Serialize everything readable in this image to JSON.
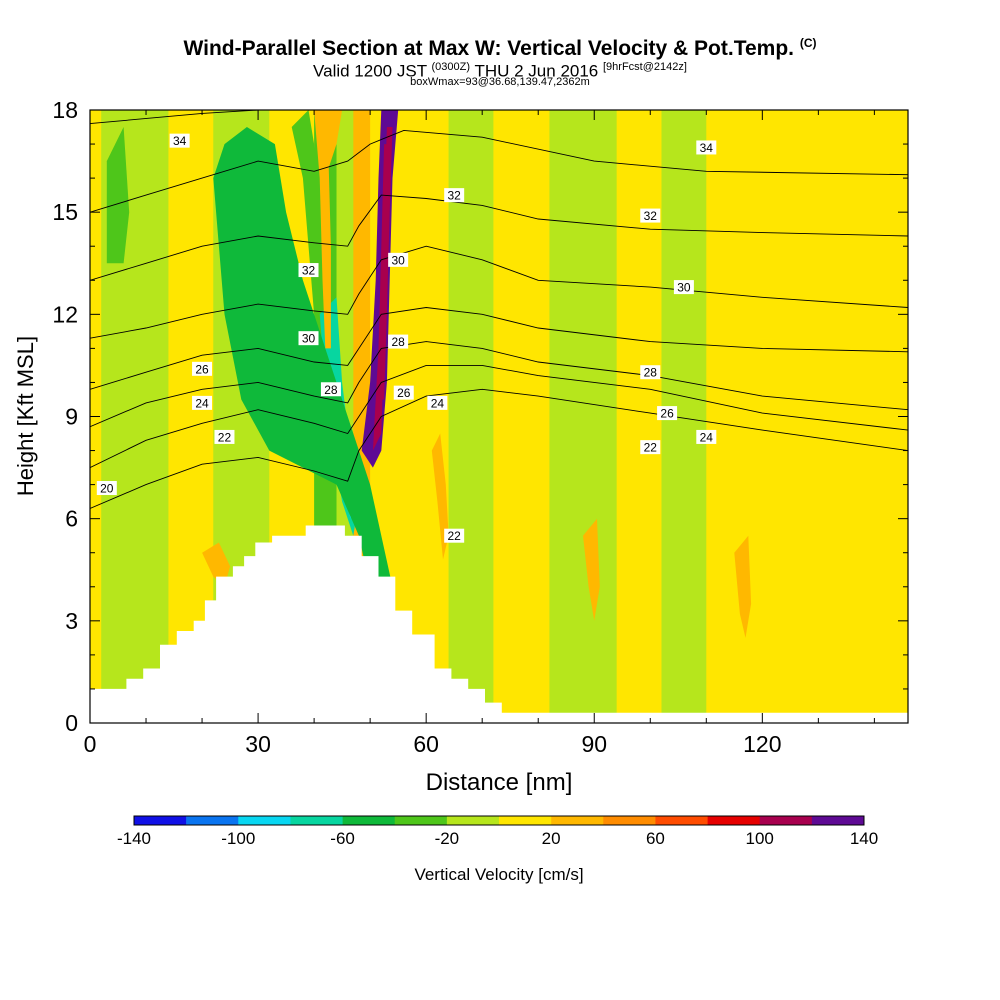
{
  "header": {
    "title": "Wind-Parallel Section at Max W: Vertical Velocity & Pot.Temp.",
    "title_tag": "(C)",
    "subtitle_valid": "Valid 1200 JST",
    "subtitle_z": "(0300Z)",
    "subtitle_date": "THU 2 Jun 2016",
    "subtitle_fcst": "[9hrFcst@2142z]",
    "subtitle2": "boxWmax=93@36.68,139.47,2362m"
  },
  "chart_data": {
    "type": "heatmap",
    "title": "Wind-Parallel Section at Max W: Vertical Velocity & Pot.Temp.",
    "xlabel": "Distance [nm]",
    "ylabel": "Height [Kft MSL]",
    "xlim": [
      0,
      146
    ],
    "ylim": [
      0,
      18
    ],
    "xticks": [
      0,
      30,
      60,
      90,
      120
    ],
    "yticks": [
      0,
      3,
      6,
      9,
      12,
      15,
      18
    ],
    "colorbar": {
      "label": "Vertical Velocity [cm/s]",
      "ticks": [
        -140,
        -100,
        -60,
        -20,
        20,
        60,
        100,
        140
      ],
      "colors": [
        "#1010e6",
        "#0a74f0",
        "#08d7f2",
        "#07d6a0",
        "#0fb93a",
        "#4ec61a",
        "#b6e61c",
        "#ffe600",
        "#ffb800",
        "#ff8c00",
        "#ff4c00",
        "#e60000",
        "#a8004e",
        "#5e0a94"
      ],
      "bounds": [
        -140,
        -120,
        -100,
        -80,
        -60,
        -40,
        -20,
        0,
        20,
        40,
        60,
        80,
        100,
        120,
        140
      ]
    },
    "background_bands": [
      {
        "x0": 0,
        "x1": 2,
        "w": 2
      },
      {
        "x0": 2,
        "x1": 14,
        "w": -8
      },
      {
        "x0": 14,
        "x1": 22,
        "w": 5
      },
      {
        "x0": 22,
        "x1": 32,
        "w": -12
      },
      {
        "x0": 32,
        "x1": 40,
        "w": 18
      },
      {
        "x0": 40,
        "x1": 44,
        "w": -25
      },
      {
        "x0": 44,
        "x1": 47,
        "w": -12
      },
      {
        "x0": 47,
        "x1": 50,
        "w": 30
      },
      {
        "x0": 50,
        "x1": 56,
        "w": 15
      },
      {
        "x0": 56,
        "x1": 64,
        "w": 12
      },
      {
        "x0": 64,
        "x1": 72,
        "w": -8
      },
      {
        "x0": 72,
        "x1": 82,
        "w": 10
      },
      {
        "x0": 82,
        "x1": 94,
        "w": -10
      },
      {
        "x0": 94,
        "x1": 102,
        "w": 10
      },
      {
        "x0": 102,
        "x1": 110,
        "w": -10
      },
      {
        "x0": 110,
        "x1": 120,
        "w": 8
      },
      {
        "x0": 120,
        "x1": 146,
        "w": 6
      }
    ],
    "features": [
      {
        "type": "polygon",
        "w": 130,
        "pts": [
          [
            48.5,
            8
          ],
          [
            50,
            10
          ],
          [
            51,
            13
          ],
          [
            51.5,
            16
          ],
          [
            52,
            18
          ],
          [
            55,
            18
          ],
          [
            54,
            16
          ],
          [
            53.5,
            13
          ],
          [
            53,
            10
          ],
          [
            52,
            8
          ],
          [
            50.5,
            7.5
          ]
        ]
      },
      {
        "type": "polygon",
        "w": 105,
        "pts": [
          [
            50.5,
            8
          ],
          [
            51.5,
            11
          ],
          [
            52,
            14
          ],
          [
            52.5,
            17
          ],
          [
            53.5,
            17
          ],
          [
            53,
            14
          ],
          [
            52.5,
            11
          ],
          [
            52,
            8.5
          ]
        ]
      },
      {
        "type": "polygon",
        "w": 110,
        "pts": [
          [
            51.5,
            9.5
          ],
          [
            52,
            12
          ],
          [
            52.5,
            15
          ],
          [
            53,
            17.5
          ],
          [
            54,
            17.5
          ],
          [
            53.5,
            15
          ],
          [
            53,
            12
          ],
          [
            52.5,
            9.5
          ]
        ]
      },
      {
        "type": "polygon",
        "w": -70,
        "pts": [
          [
            41,
            12
          ],
          [
            42,
            10
          ],
          [
            43,
            8.5
          ],
          [
            45,
            6.5
          ],
          [
            47,
            5.5
          ],
          [
            48,
            6.5
          ],
          [
            46.5,
            8
          ],
          [
            45,
            10
          ],
          [
            44,
            12.5
          ]
        ]
      },
      {
        "type": "polygon",
        "w": -85,
        "pts": [
          [
            42,
            10.5
          ],
          [
            43.5,
            8.5
          ],
          [
            45,
            7
          ],
          [
            46.5,
            6
          ],
          [
            47,
            6.6
          ],
          [
            45.5,
            8
          ],
          [
            44,
            10
          ]
        ]
      },
      {
        "type": "polygon",
        "w": -45,
        "pts": [
          [
            22,
            16
          ],
          [
            24,
            12
          ],
          [
            27,
            9.5
          ],
          [
            32,
            8
          ],
          [
            38,
            7.5
          ],
          [
            44,
            7
          ],
          [
            48,
            5.5
          ],
          [
            50,
            4
          ],
          [
            52,
            3.3
          ],
          [
            54,
            4
          ],
          [
            50,
            7
          ],
          [
            46,
            9
          ],
          [
            42,
            11
          ],
          [
            38,
            13
          ],
          [
            35,
            15
          ],
          [
            33,
            17
          ],
          [
            28,
            17.5
          ],
          [
            24,
            17
          ]
        ]
      },
      {
        "type": "polygon",
        "w": -28,
        "pts": [
          [
            3,
            16.5
          ],
          [
            6,
            17.5
          ],
          [
            7,
            15
          ],
          [
            6,
            13.5
          ],
          [
            3,
            13.5
          ]
        ]
      },
      {
        "type": "polygon",
        "w": -28,
        "pts": [
          [
            36,
            17.5
          ],
          [
            38,
            16
          ],
          [
            39,
            14
          ],
          [
            40,
            12
          ],
          [
            42,
            13
          ],
          [
            41,
            15
          ],
          [
            40,
            17
          ],
          [
            39,
            18
          ]
        ]
      },
      {
        "type": "polygon",
        "w": 35,
        "pts": [
          [
            40,
            18
          ],
          [
            41,
            16
          ],
          [
            41.5,
            13
          ],
          [
            42,
            11
          ],
          [
            43,
            11
          ],
          [
            43,
            14
          ],
          [
            42.5,
            17
          ],
          [
            42,
            18
          ]
        ]
      },
      {
        "type": "polygon",
        "w": 30,
        "pts": [
          [
            61,
            8
          ],
          [
            62,
            6.5
          ],
          [
            63,
            4.8
          ],
          [
            64,
            5.5
          ],
          [
            63.5,
            7
          ],
          [
            62.5,
            8.5
          ]
        ]
      },
      {
        "type": "polygon",
        "w": 30,
        "pts": [
          [
            88,
            5.5
          ],
          [
            89,
            4
          ],
          [
            90,
            3
          ],
          [
            91,
            4
          ],
          [
            90.5,
            6
          ]
        ]
      },
      {
        "type": "polygon",
        "w": 30,
        "pts": [
          [
            115,
            5
          ],
          [
            116,
            3.2
          ],
          [
            117,
            2.5
          ],
          [
            118,
            3.5
          ],
          [
            117.5,
            5.5
          ]
        ]
      },
      {
        "type": "polygon",
        "w": 30,
        "pts": [
          [
            20,
            5
          ],
          [
            22,
            4.3
          ],
          [
            24,
            4
          ],
          [
            25,
            4.6
          ],
          [
            23,
            5.3
          ]
        ]
      },
      {
        "type": "polygon",
        "w": 25,
        "pts": [
          [
            40,
            18
          ],
          [
            41,
            17
          ],
          [
            42,
            16
          ],
          [
            44,
            17
          ],
          [
            45,
            18
          ]
        ]
      }
    ],
    "terrain": [
      [
        0,
        0
      ],
      [
        0,
        1
      ],
      [
        6.5,
        1
      ],
      [
        6.5,
        1.3
      ],
      [
        9.5,
        1.3
      ],
      [
        9.5,
        1.6
      ],
      [
        12.5,
        1.6
      ],
      [
        12.5,
        2.3
      ],
      [
        15.5,
        2.3
      ],
      [
        15.5,
        2.7
      ],
      [
        18.5,
        2.7
      ],
      [
        18.5,
        3
      ],
      [
        20.5,
        3
      ],
      [
        20.5,
        3.6
      ],
      [
        22.5,
        3.6
      ],
      [
        22.5,
        4.3
      ],
      [
        25.5,
        4.3
      ],
      [
        25.5,
        4.6
      ],
      [
        27.5,
        4.6
      ],
      [
        27.5,
        4.9
      ],
      [
        29.5,
        4.9
      ],
      [
        29.5,
        5.3
      ],
      [
        32.5,
        5.3
      ],
      [
        32.5,
        5.5
      ],
      [
        38.5,
        5.5
      ],
      [
        38.5,
        5.8
      ],
      [
        45.5,
        5.8
      ],
      [
        45.5,
        5.5
      ],
      [
        48.5,
        5.5
      ],
      [
        48.5,
        4.9
      ],
      [
        51.5,
        4.9
      ],
      [
        51.5,
        4.3
      ],
      [
        54.5,
        4.3
      ],
      [
        54.5,
        3.3
      ],
      [
        57.5,
        3.3
      ],
      [
        57.5,
        2.6
      ],
      [
        61.5,
        2.6
      ],
      [
        61.5,
        1.6
      ],
      [
        64.5,
        1.6
      ],
      [
        64.5,
        1.3
      ],
      [
        67.5,
        1.3
      ],
      [
        67.5,
        1
      ],
      [
        70.5,
        1
      ],
      [
        70.5,
        0.6
      ],
      [
        73.5,
        0.6
      ],
      [
        73.5,
        0.3
      ],
      [
        146,
        0.3
      ],
      [
        146,
        0
      ]
    ],
    "theta_lines": [
      {
        "value": 20,
        "pts": [
          [
            0,
            6.3
          ],
          [
            10,
            7
          ],
          [
            20,
            7.6
          ],
          [
            30,
            7.8
          ],
          [
            40,
            7.4
          ],
          [
            46,
            7.1
          ],
          [
            48,
            8
          ],
          [
            52,
            9
          ],
          [
            60,
            9.6
          ],
          [
            70,
            9.8
          ],
          [
            80,
            9.6
          ],
          [
            100,
            9.1
          ],
          [
            120,
            8.6
          ],
          [
            146,
            8.0
          ]
        ]
      },
      {
        "value": 22,
        "pts": [
          [
            0,
            7.5
          ],
          [
            10,
            8.3
          ],
          [
            20,
            8.8
          ],
          [
            30,
            9.2
          ],
          [
            40,
            8.8
          ],
          [
            46,
            8.5
          ],
          [
            48,
            9
          ],
          [
            52,
            10
          ],
          [
            60,
            10.5
          ],
          [
            70,
            10.5
          ],
          [
            80,
            10.2
          ],
          [
            100,
            9.8
          ],
          [
            120,
            9.1
          ],
          [
            146,
            8.6
          ]
        ]
      },
      {
        "value": 24,
        "pts": [
          [
            0,
            8.7
          ],
          [
            10,
            9.4
          ],
          [
            20,
            9.8
          ],
          [
            30,
            10
          ],
          [
            40,
            9.6
          ],
          [
            46,
            9.4
          ],
          [
            48,
            10
          ],
          [
            52,
            11
          ],
          [
            60,
            11.2
          ],
          [
            70,
            11
          ],
          [
            80,
            10.6
          ],
          [
            100,
            10.2
          ],
          [
            120,
            9.6
          ],
          [
            146,
            9.2
          ]
        ]
      },
      {
        "value": 26,
        "pts": [
          [
            0,
            9.8
          ],
          [
            10,
            10.3
          ],
          [
            20,
            10.8
          ],
          [
            30,
            11
          ],
          [
            40,
            10.6
          ],
          [
            46,
            10.5
          ],
          [
            48,
            11
          ],
          [
            52,
            12
          ],
          [
            60,
            12.2
          ],
          [
            70,
            12
          ],
          [
            80,
            11.6
          ],
          [
            100,
            11.2
          ],
          [
            120,
            11
          ],
          [
            146,
            10.9
          ]
        ]
      },
      {
        "value": 28,
        "pts": [
          [
            0,
            11.3
          ],
          [
            10,
            11.6
          ],
          [
            20,
            12
          ],
          [
            30,
            12.3
          ],
          [
            40,
            12.1
          ],
          [
            46,
            12
          ],
          [
            48,
            12.6
          ],
          [
            52,
            13.6
          ],
          [
            60,
            14
          ],
          [
            70,
            13.6
          ],
          [
            80,
            13
          ],
          [
            100,
            12.8
          ],
          [
            120,
            12.5
          ],
          [
            146,
            12.2
          ]
        ]
      },
      {
        "value": 30,
        "pts": [
          [
            0,
            13
          ],
          [
            10,
            13.5
          ],
          [
            20,
            14
          ],
          [
            30,
            14.3
          ],
          [
            40,
            14.1
          ],
          [
            46,
            14
          ],
          [
            48,
            14.6
          ],
          [
            52,
            15.5
          ],
          [
            60,
            15.4
          ],
          [
            70,
            15.2
          ],
          [
            80,
            14.8
          ],
          [
            100,
            14.5
          ],
          [
            120,
            14.4
          ],
          [
            146,
            14.3
          ]
        ]
      },
      {
        "value": 32,
        "pts": [
          [
            0,
            15
          ],
          [
            10,
            15.5
          ],
          [
            20,
            16
          ],
          [
            30,
            16.5
          ],
          [
            40,
            16.2
          ],
          [
            46,
            16.5
          ],
          [
            50,
            17
          ],
          [
            56,
            17.4
          ],
          [
            70,
            17.2
          ],
          [
            90,
            16.5
          ],
          [
            110,
            16.2
          ],
          [
            146,
            16.1
          ]
        ]
      },
      {
        "value": 34,
        "pts": [
          [
            0,
            17.6
          ],
          [
            20,
            17.9
          ],
          [
            30,
            18
          ],
          [
            120,
            18
          ],
          [
            146,
            18
          ]
        ]
      }
    ],
    "contour_labels": [
      {
        "text": "34",
        "x": 16,
        "y": 17.1
      },
      {
        "text": "34",
        "x": 110,
        "y": 16.9
      },
      {
        "text": "32",
        "x": 65,
        "y": 15.5
      },
      {
        "text": "32",
        "x": 100,
        "y": 14.9
      },
      {
        "text": "32",
        "x": 39,
        "y": 13.3
      },
      {
        "text": "30",
        "x": 55,
        "y": 13.6
      },
      {
        "text": "30",
        "x": 106,
        "y": 12.8
      },
      {
        "text": "30",
        "x": 39,
        "y": 11.3
      },
      {
        "text": "28",
        "x": 55,
        "y": 11.2
      },
      {
        "text": "28",
        "x": 100,
        "y": 10.3
      },
      {
        "text": "28",
        "x": 43,
        "y": 9.8
      },
      {
        "text": "26",
        "x": 20,
        "y": 10.4
      },
      {
        "text": "26",
        "x": 56,
        "y": 9.7
      },
      {
        "text": "26",
        "x": 103,
        "y": 9.1
      },
      {
        "text": "24",
        "x": 20,
        "y": 9.4
      },
      {
        "text": "24",
        "x": 62,
        "y": 9.4
      },
      {
        "text": "24",
        "x": 110,
        "y": 8.4
      },
      {
        "text": "22",
        "x": 24,
        "y": 8.4
      },
      {
        "text": "22",
        "x": 100,
        "y": 8.1
      },
      {
        "text": "22",
        "x": 65,
        "y": 5.5
      },
      {
        "text": "20",
        "x": 3,
        "y": 6.9
      }
    ]
  }
}
